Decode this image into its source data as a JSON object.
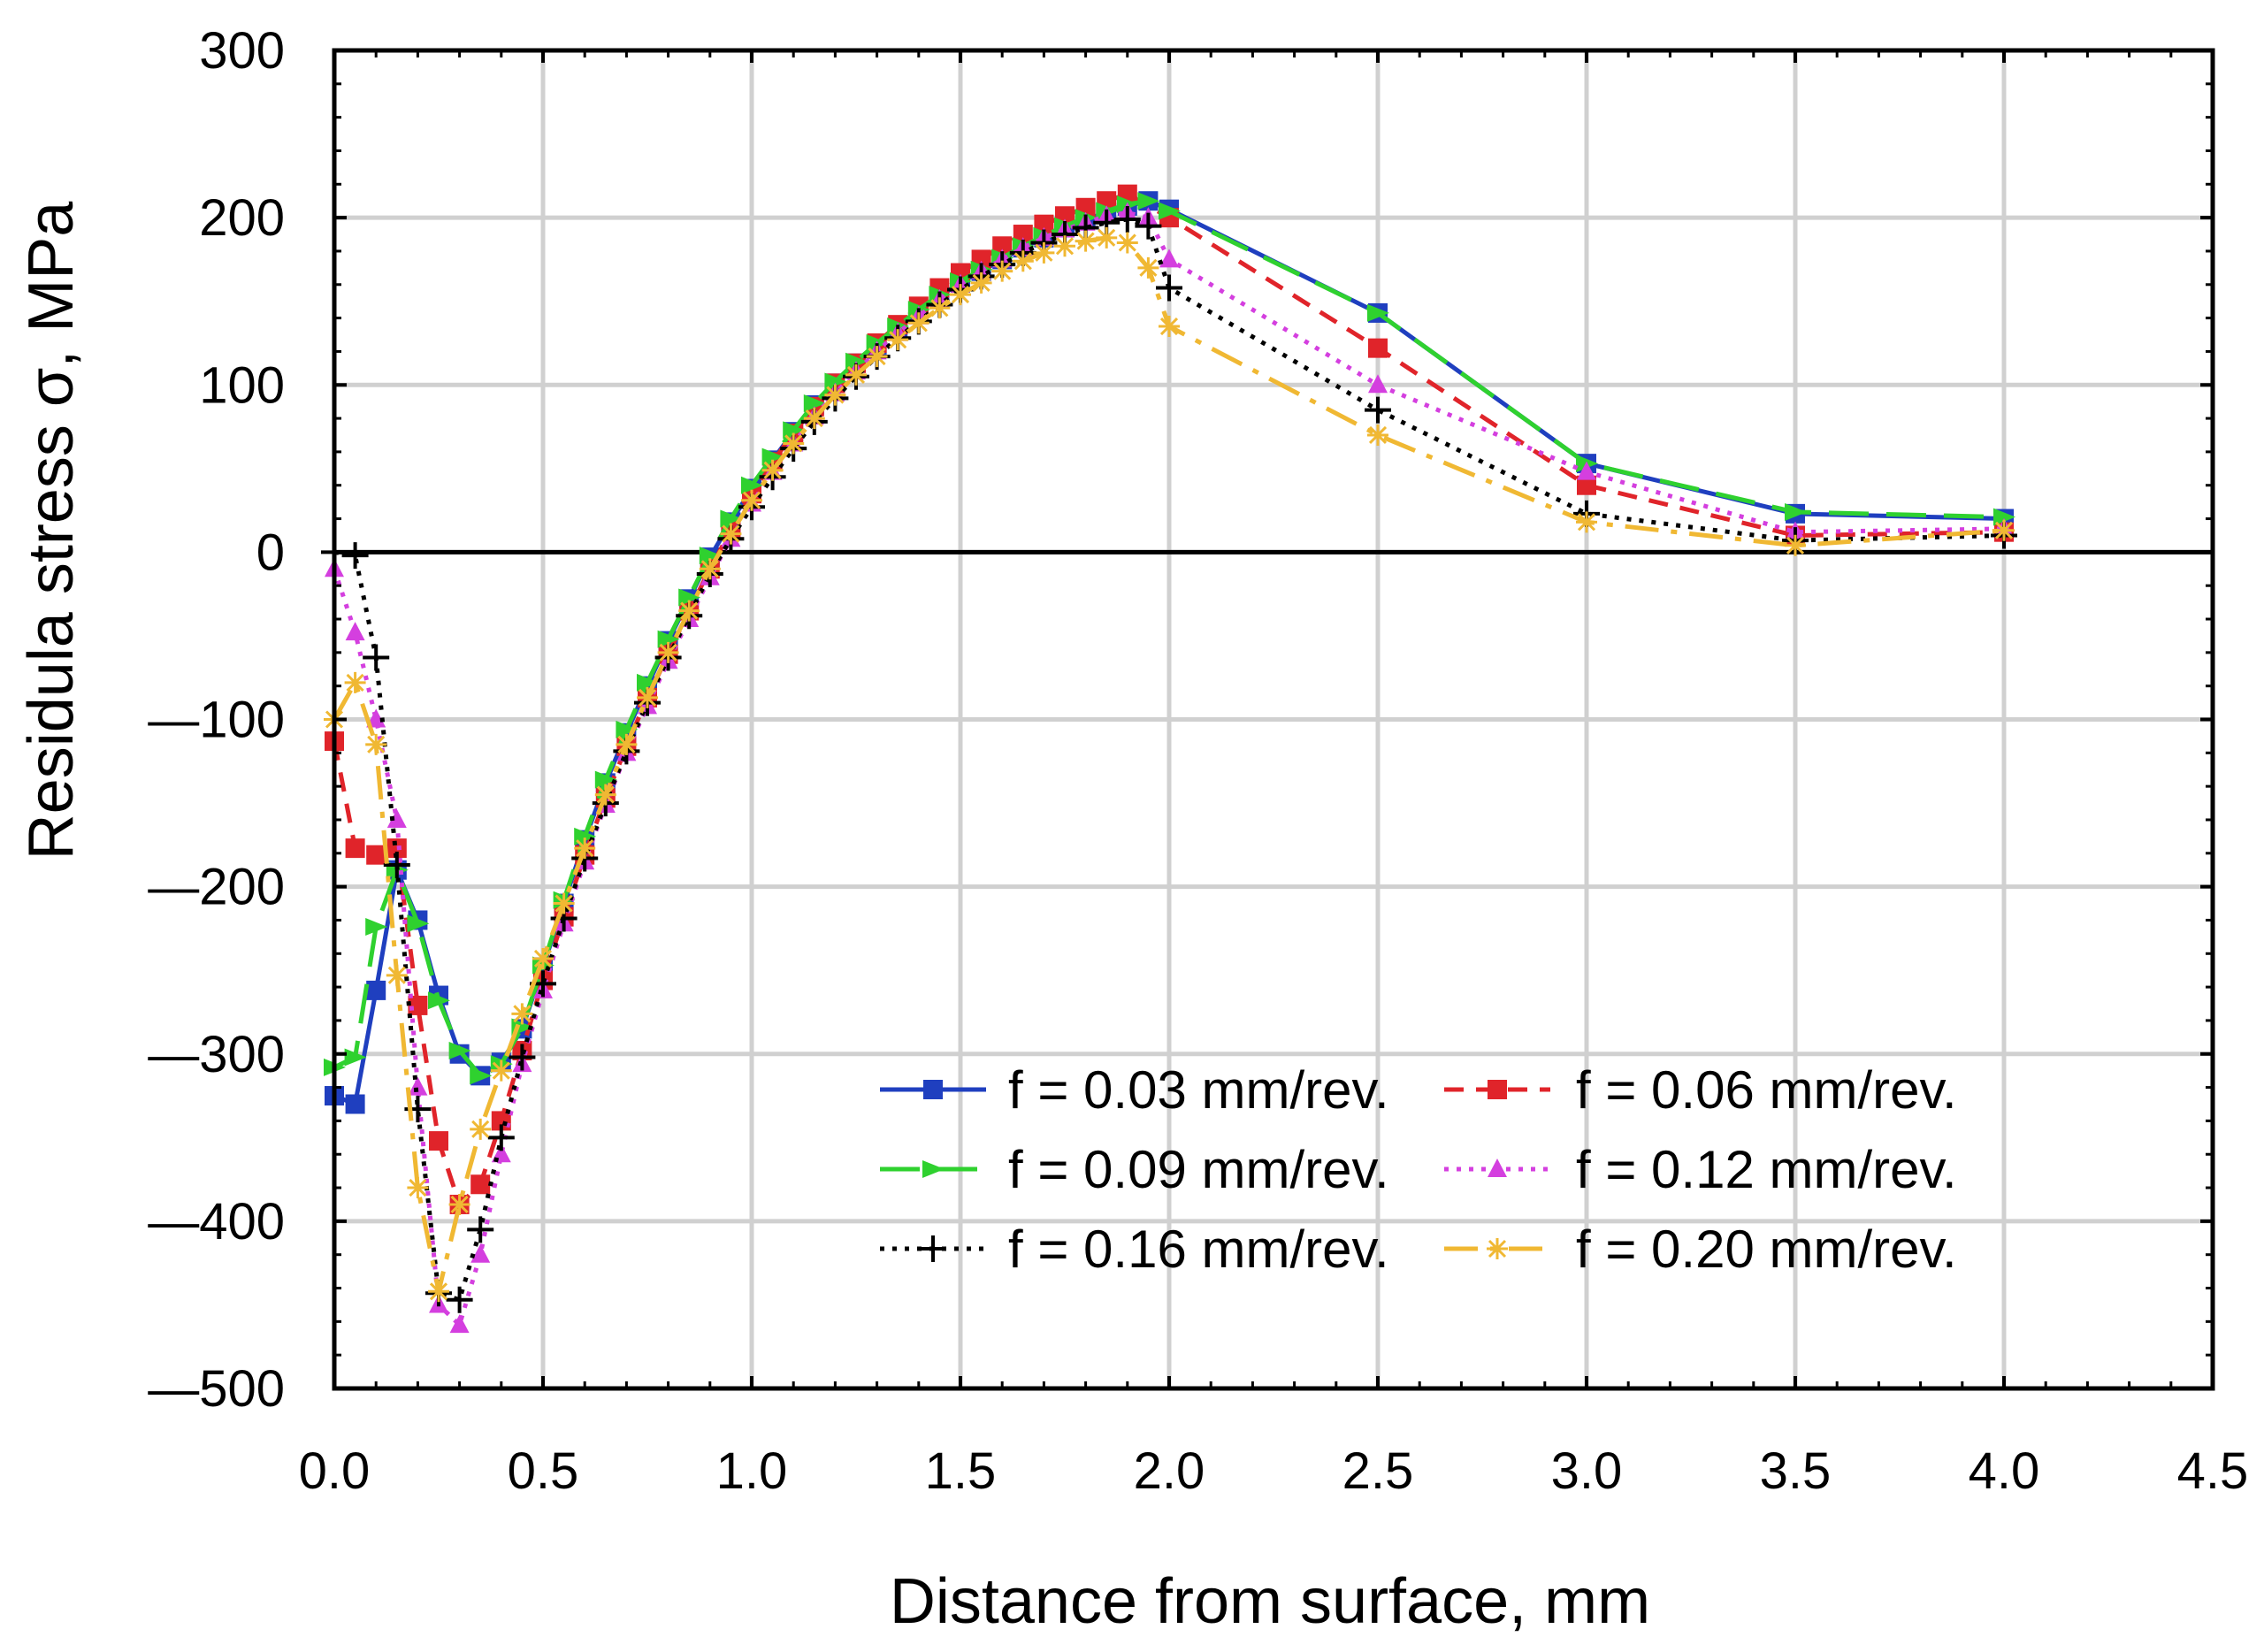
{
  "chart_data": {
    "type": "line",
    "title": "",
    "xlabel": "Distance from surface, mm",
    "ylabel": "Residula stress σ, MPa",
    "xlim": [
      0,
      4.5
    ],
    "ylim": [
      -500,
      300
    ],
    "grid": true,
    "legend_position": "bottom-right",
    "x_ticks": [
      0,
      0.5,
      1,
      1.5,
      2,
      2.5,
      3,
      3.5,
      4,
      4.5
    ],
    "y_ticks": [
      -500,
      -400,
      -300,
      -200,
      -100,
      0,
      100,
      200,
      300
    ],
    "x_tick_labels": [
      "0.0",
      "0.5",
      "1.0",
      "1.5",
      "2.0",
      "2.5",
      "3.0",
      "3.5",
      "4.0",
      "4.5"
    ],
    "y_tick_labels": [
      "—500",
      "—400",
      "—300",
      "—200",
      "—100",
      "0",
      "100",
      "200",
      "300"
    ],
    "series": [
      {
        "name": "f = 0.03 mm/rev.",
        "color": "#1f3fbf",
        "marker": "square",
        "dash": "solid",
        "x": [
          0.0,
          0.05,
          0.1,
          0.15,
          0.2,
          0.25,
          0.3,
          0.35,
          0.4,
          0.45,
          0.5,
          0.55,
          0.6,
          0.65,
          0.7,
          0.75,
          0.8,
          0.85,
          0.9,
          0.95,
          1.0,
          1.05,
          1.1,
          1.15,
          1.2,
          1.25,
          1.3,
          1.35,
          1.4,
          1.45,
          1.5,
          1.55,
          1.6,
          1.65,
          1.7,
          1.75,
          1.8,
          1.85,
          1.9,
          1.95,
          2.0,
          2.5,
          3.0,
          3.5,
          4.0
        ],
        "values": [
          -325,
          -330,
          -262,
          -190,
          -220,
          -265,
          -300,
          -313,
          -305,
          -285,
          -248,
          -210,
          -172,
          -138,
          -108,
          -80,
          -53,
          -28,
          -3,
          18,
          38,
          55,
          72,
          88,
          101,
          113,
          124,
          134,
          144,
          153,
          161,
          168,
          175,
          182,
          188,
          194,
          199,
          203,
          207,
          210,
          205,
          143,
          53,
          23,
          20
        ]
      },
      {
        "name": "f = 0.06 mm/rev.",
        "color": "#e0242a",
        "marker": "square",
        "dash": "dashed",
        "x": [
          0.0,
          0.05,
          0.1,
          0.15,
          0.2,
          0.25,
          0.3,
          0.35,
          0.4,
          0.45,
          0.5,
          0.55,
          0.6,
          0.65,
          0.7,
          0.75,
          0.8,
          0.85,
          0.9,
          0.95,
          1.0,
          1.05,
          1.1,
          1.15,
          1.2,
          1.25,
          1.3,
          1.35,
          1.4,
          1.45,
          1.5,
          1.55,
          1.6,
          1.65,
          1.7,
          1.75,
          1.8,
          1.85,
          1.9,
          2.0,
          2.5,
          3.0,
          3.5,
          4.0
        ],
        "values": [
          -113,
          -177,
          -181,
          -177,
          -271,
          -352,
          -390,
          -378,
          -340,
          -298,
          -256,
          -218,
          -181,
          -147,
          -116,
          -87,
          -61,
          -35,
          -10,
          13,
          35,
          54,
          71,
          87,
          101,
          113,
          125,
          136,
          147,
          158,
          167,
          175,
          183,
          190,
          196,
          201,
          206,
          210,
          214,
          200,
          122,
          40,
          10,
          12
        ]
      },
      {
        "name": "f = 0.09 mm/rev.",
        "color": "#2fd12f",
        "marker": "arrow",
        "dash": "longdash",
        "x": [
          0.0,
          0.05,
          0.1,
          0.15,
          0.2,
          0.25,
          0.3,
          0.35,
          0.4,
          0.45,
          0.5,
          0.55,
          0.6,
          0.65,
          0.7,
          0.75,
          0.8,
          0.85,
          0.9,
          0.95,
          1.0,
          1.05,
          1.1,
          1.15,
          1.2,
          1.25,
          1.3,
          1.35,
          1.4,
          1.45,
          1.5,
          1.55,
          1.6,
          1.65,
          1.7,
          1.75,
          1.8,
          1.85,
          1.9,
          1.95,
          2.0,
          2.5,
          3.0,
          3.5,
          4.0
        ],
        "values": [
          -308,
          -302,
          -224,
          -190,
          -222,
          -268,
          -298,
          -313,
          -306,
          -284,
          -247,
          -208,
          -170,
          -136,
          -106,
          -78,
          -52,
          -27,
          -2,
          20,
          40,
          57,
          73,
          89,
          102,
          114,
          125,
          135,
          145,
          154,
          162,
          169,
          176,
          183,
          189,
          195,
          200,
          204,
          208,
          210,
          204,
          143,
          53,
          24,
          21
        ]
      },
      {
        "name": "f = 0.12 mm/rev.",
        "color": "#d43fdf",
        "marker": "triangle",
        "dash": "dotted",
        "x": [
          0.0,
          0.05,
          0.1,
          0.15,
          0.2,
          0.25,
          0.3,
          0.35,
          0.4,
          0.45,
          0.5,
          0.55,
          0.6,
          0.65,
          0.7,
          0.75,
          0.8,
          0.85,
          0.9,
          0.95,
          1.0,
          1.05,
          1.1,
          1.15,
          1.2,
          1.25,
          1.3,
          1.35,
          1.4,
          1.45,
          1.5,
          1.55,
          1.6,
          1.65,
          1.7,
          1.75,
          1.8,
          1.85,
          1.9,
          1.95,
          2.0,
          2.5,
          3.0,
          3.5,
          4.0
        ],
        "values": [
          -10,
          -48,
          -100,
          -160,
          -320,
          -450,
          -462,
          -420,
          -360,
          -306,
          -262,
          -222,
          -185,
          -151,
          -120,
          -92,
          -65,
          -40,
          -15,
          8,
          29,
          48,
          65,
          81,
          95,
          108,
          120,
          131,
          141,
          151,
          160,
          168,
          175,
          182,
          188,
          193,
          197,
          201,
          203,
          200,
          175,
          100,
          48,
          12,
          14
        ]
      },
      {
        "name": "f = 0.16 mm/rev.",
        "color": "#000000",
        "marker": "plus",
        "dash": "dotted",
        "x": [
          0.0,
          0.05,
          0.1,
          0.15,
          0.2,
          0.25,
          0.3,
          0.35,
          0.4,
          0.45,
          0.5,
          0.55,
          0.6,
          0.65,
          0.7,
          0.75,
          0.8,
          0.85,
          0.9,
          0.95,
          1.0,
          1.05,
          1.1,
          1.15,
          1.2,
          1.25,
          1.3,
          1.35,
          1.4,
          1.45,
          1.5,
          1.55,
          1.6,
          1.65,
          1.7,
          1.75,
          1.8,
          1.85,
          1.9,
          1.95,
          2.0,
          2.5,
          3.0,
          3.5,
          4.0
        ],
        "values": [
          0,
          -2,
          -63,
          -187,
          -333,
          -443,
          -447,
          -405,
          -350,
          -302,
          -258,
          -219,
          -183,
          -150,
          -119,
          -90,
          -63,
          -38,
          -13,
          8,
          27,
          45,
          62,
          78,
          92,
          105,
          117,
          128,
          138,
          148,
          157,
          165,
          172,
          179,
          185,
          190,
          194,
          197,
          199,
          195,
          158,
          85,
          23,
          7,
          10
        ]
      },
      {
        "name": "f = 0.20 mm/rev.",
        "color": "#f0b833",
        "marker": "star",
        "dash": "dashdot",
        "x": [
          0.0,
          0.05,
          0.1,
          0.15,
          0.2,
          0.25,
          0.3,
          0.35,
          0.4,
          0.45,
          0.5,
          0.55,
          0.6,
          0.65,
          0.7,
          0.75,
          0.8,
          0.85,
          0.9,
          0.95,
          1.0,
          1.05,
          1.1,
          1.15,
          1.2,
          1.25,
          1.3,
          1.35,
          1.4,
          1.45,
          1.5,
          1.55,
          1.6,
          1.65,
          1.7,
          1.75,
          1.8,
          1.85,
          1.9,
          1.95,
          2.0,
          2.5,
          3.0,
          3.5,
          4.0
        ],
        "values": [
          -100,
          -78,
          -115,
          -253,
          -380,
          -442,
          -390,
          -345,
          -310,
          -276,
          -243,
          -210,
          -177,
          -145,
          -115,
          -87,
          -60,
          -35,
          -10,
          11,
          31,
          49,
          65,
          80,
          94,
          106,
          117,
          127,
          137,
          146,
          154,
          161,
          168,
          174,
          179,
          183,
          186,
          188,
          185,
          170,
          135,
          70,
          18,
          4,
          13
        ]
      }
    ]
  }
}
